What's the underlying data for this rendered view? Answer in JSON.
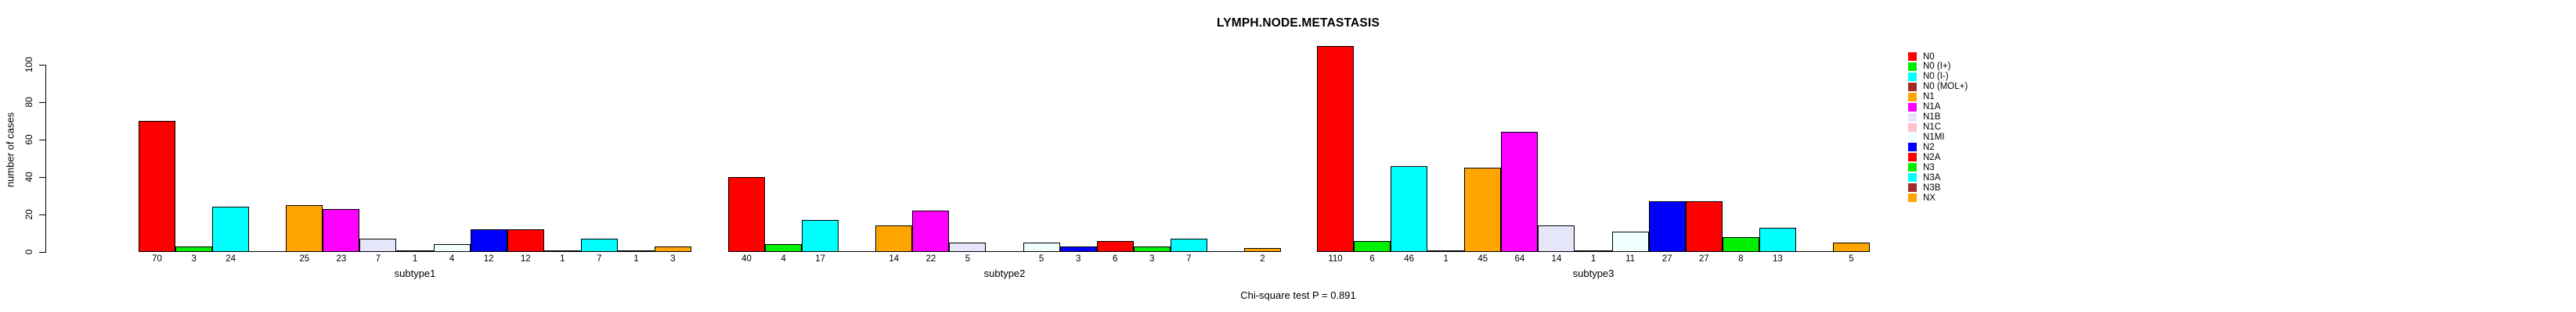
{
  "title": "LYMPH.NODE.METASTASIS",
  "note": "Chi-square test P = 0.891",
  "y_axis": {
    "label": "number of cases",
    "ticks": [
      0,
      20,
      40,
      60,
      80,
      100
    ]
  },
  "chart_data": {
    "type": "bar",
    "grouped": true,
    "title": "LYMPH.NODE.METASTASIS",
    "xlabel": "",
    "ylabel": "number of cases",
    "ylim": [
      0,
      110
    ],
    "grid": false,
    "legend_position": "right",
    "bar_value_labels": "shown below bars, omitted when 0",
    "categories": [
      "subtype1",
      "subtype2",
      "subtype3"
    ],
    "series": [
      {
        "name": "N0",
        "color": "#FF0000",
        "values": [
          70,
          40,
          110
        ]
      },
      {
        "name": "N0 (I+)",
        "color": "#00EE00",
        "values": [
          3,
          4,
          6
        ]
      },
      {
        "name": "N0 (I-)",
        "color": "#00FFFF",
        "values": [
          24,
          17,
          46
        ]
      },
      {
        "name": "N0 (MOL+)",
        "color": "#A52A2A",
        "values": [
          0,
          0,
          1
        ]
      },
      {
        "name": "N1",
        "color": "#FFA500",
        "values": [
          25,
          14,
          45
        ]
      },
      {
        "name": "N1A",
        "color": "#FF00FF",
        "values": [
          23,
          22,
          64
        ]
      },
      {
        "name": "N1B",
        "color": "#E6E6FA",
        "values": [
          7,
          5,
          14
        ]
      },
      {
        "name": "N1C",
        "color": "#FFC0CB",
        "values": [
          1,
          0,
          1
        ]
      },
      {
        "name": "N1MI",
        "color": "#F0FFFF",
        "values": [
          4,
          5,
          11
        ]
      },
      {
        "name": "N2",
        "color": "#0000FF",
        "values": [
          12,
          3,
          27
        ]
      },
      {
        "name": "N2A",
        "color": "#FF0000",
        "values": [
          12,
          6,
          27
        ]
      },
      {
        "name": "N3",
        "color": "#00EE00",
        "values": [
          1,
          3,
          8
        ]
      },
      {
        "name": "N3A",
        "color": "#00FFFF",
        "values": [
          7,
          7,
          13
        ]
      },
      {
        "name": "N3B",
        "color": "#A52A2A",
        "values": [
          1,
          0,
          0
        ]
      },
      {
        "name": "NX",
        "color": "#FFA500",
        "values": [
          3,
          2,
          5
        ]
      }
    ]
  }
}
